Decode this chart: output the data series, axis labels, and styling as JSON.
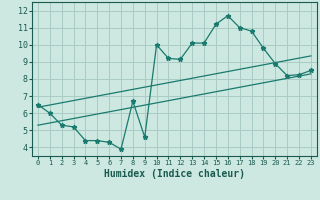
{
  "bg_color": "#cce8e0",
  "grid_color": "#aaccC4",
  "line_color": "#1a7a6e",
  "text_color": "#1a5a50",
  "xlabel": "Humidex (Indice chaleur)",
  "xlim": [
    -0.5,
    23.5
  ],
  "ylim": [
    3.5,
    12.5
  ],
  "xticks": [
    0,
    1,
    2,
    3,
    4,
    5,
    6,
    7,
    8,
    9,
    10,
    11,
    12,
    13,
    14,
    15,
    16,
    17,
    18,
    19,
    20,
    21,
    22,
    23
  ],
  "yticks": [
    4,
    5,
    6,
    7,
    8,
    9,
    10,
    11,
    12
  ],
  "series1_x": [
    0,
    1,
    2,
    3,
    4,
    5,
    6,
    7,
    8,
    9,
    10,
    11,
    12,
    13,
    14,
    15,
    16,
    17,
    18,
    19,
    20,
    21,
    22,
    23
  ],
  "series1_y": [
    6.5,
    6.0,
    5.3,
    5.2,
    4.4,
    4.4,
    4.3,
    3.9,
    6.7,
    4.6,
    10.0,
    9.2,
    9.15,
    10.1,
    10.1,
    11.2,
    11.7,
    11.0,
    10.8,
    9.8,
    8.9,
    8.2,
    8.25,
    8.5
  ],
  "series2_x": [
    0,
    23
  ],
  "series2_y": [
    6.35,
    9.35
  ],
  "series3_x": [
    0,
    23
  ],
  "series3_y": [
    5.3,
    8.3
  ]
}
